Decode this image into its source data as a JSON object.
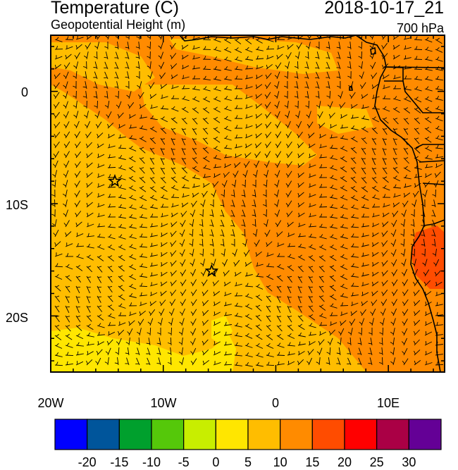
{
  "header": {
    "title": "Temperature (C)",
    "subtitle": "Geopotential Height (m)",
    "datetime": "2018-10-17_21",
    "level": "700 hPa"
  },
  "map": {
    "lon_range": [
      -20,
      15
    ],
    "lat_range": [
      -25,
      5
    ],
    "lon_ticks": [
      {
        "value": -20,
        "label": "20W"
      },
      {
        "value": -10,
        "label": "10W"
      },
      {
        "value": 0,
        "label": "0"
      },
      {
        "value": 10,
        "label": "10E"
      }
    ],
    "lat_ticks": [
      {
        "value": 0,
        "label": "0"
      },
      {
        "value": -10,
        "label": "10S"
      },
      {
        "value": -20,
        "label": "20S"
      }
    ],
    "markers": [
      {
        "name": "star-marker-1",
        "lon": -14.3,
        "lat": -8.0
      },
      {
        "name": "star-marker-2",
        "lon": -5.7,
        "lat": -16.0
      }
    ],
    "fill_colors": {
      "band_5_10": "#ffbd00",
      "band_10_15": "#ff8b00",
      "band_15_20": "#ff4c00",
      "band_0_5": "#ffe600"
    }
  },
  "colorbar": {
    "labels": [
      "-20",
      "-15",
      "-10",
      "-5",
      "0",
      "5",
      "10",
      "15",
      "20",
      "25",
      "30"
    ],
    "colors": [
      "#0000ff",
      "#00559b",
      "#00a02d",
      "#55c80a",
      "#c8ee00",
      "#ffe600",
      "#ffbd00",
      "#ff8b00",
      "#ff4c00",
      "#ff0000",
      "#aa0045",
      "#640096"
    ]
  }
}
